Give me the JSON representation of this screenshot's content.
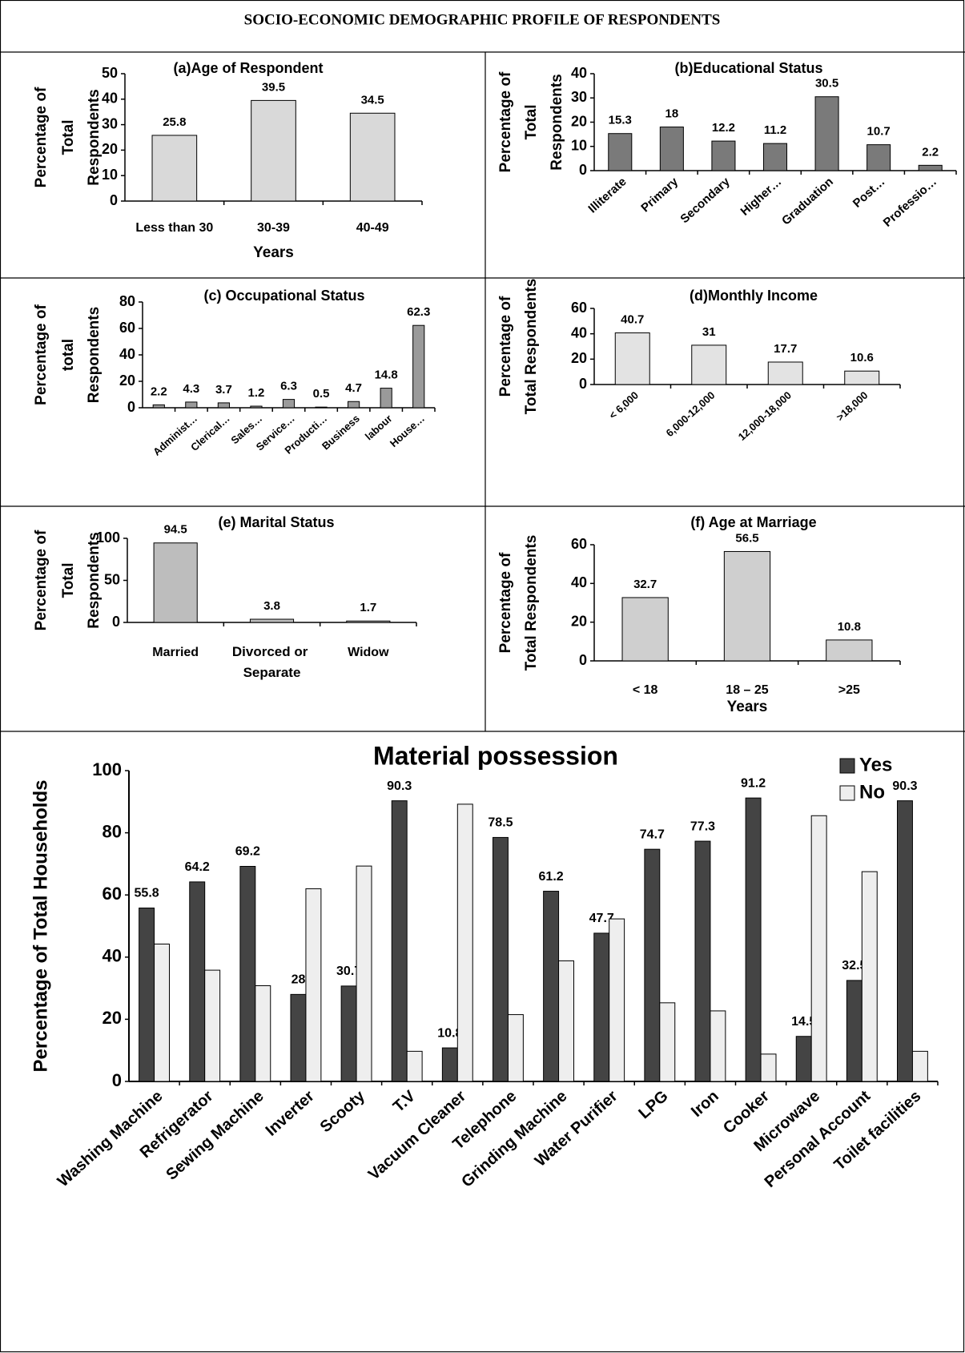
{
  "title": "SOCIO-ECONOMIC  DEMOGRAPHIC PROFILE OF RESPONDENTS",
  "chart_data": [
    {
      "type": "bar",
      "title": "(a)Age of Respondent",
      "ylabel": [
        "Percentage of",
        "Total",
        "Respondents"
      ],
      "xlabel": "Years",
      "categories": [
        "Less than 30",
        "30-39",
        "40-49"
      ],
      "values": [
        25.8,
        39.5,
        34.5
      ],
      "color": "#d9d9d9",
      "data_labels": true,
      "ylim": [
        0,
        50
      ],
      "yticks": [
        0,
        10,
        20,
        30,
        40,
        50
      ],
      "grid": false
    },
    {
      "type": "bar",
      "title": "(b)Educational Status",
      "ylabel": [
        "Percentage of",
        "Total",
        "Respondents"
      ],
      "categories": [
        "Illiterate",
        "Primary",
        "Secondary",
        "Higher…",
        "Graduation",
        "Post…",
        "Professio…"
      ],
      "values": [
        15.3,
        18,
        12.2,
        11.2,
        30.5,
        10.7,
        2.2
      ],
      "color": "#7a7a7a",
      "data_labels": true,
      "ylim": [
        0,
        40
      ],
      "yticks": [
        0,
        10,
        20,
        30,
        40
      ],
      "grid": false
    },
    {
      "type": "bar",
      "title": "(c) Occupational Status",
      "ylabel": [
        "Percentage of",
        "total",
        "Respondents"
      ],
      "categories": [
        null,
        "Administ…",
        "Clerical…",
        "Sales…",
        "Service…",
        "Producti…",
        "Business",
        "labour",
        "House…"
      ],
      "values": [
        2.2,
        4.3,
        3.7,
        1.2,
        6.3,
        0.5,
        4.7,
        14.8,
        62.3
      ],
      "color": "#9a9a9a",
      "data_labels": true,
      "ylim": [
        0,
        80
      ],
      "yticks": [
        0,
        20,
        40,
        60,
        80
      ],
      "grid": false
    },
    {
      "type": "bar",
      "title": "(d)Monthly Income",
      "ylabel": [
        "Percentage of",
        "Total Respondents"
      ],
      "categories": [
        "< 6,000",
        "6,000-12,000",
        "12,000-18,000",
        ">18,000"
      ],
      "values": [
        40.7,
        31,
        17.7,
        10.6
      ],
      "color": "#e3e3e3",
      "data_labels": true,
      "ylim": [
        0,
        60
      ],
      "yticks": [
        0,
        20,
        40,
        60
      ],
      "grid": false
    },
    {
      "type": "bar",
      "title": "(e) Marital Status",
      "ylabel": [
        "Percentage of",
        "Total",
        "Respondents"
      ],
      "categories": [
        "Married",
        "Divorced or Separate",
        "Widow"
      ],
      "values": [
        94.5,
        3.8,
        1.7
      ],
      "color": "#bdbdbd",
      "data_labels": true,
      "ylim": [
        0,
        100
      ],
      "yticks": [
        0,
        50,
        100
      ],
      "grid": false
    },
    {
      "type": "bar",
      "title": "(f) Age at Marriage",
      "ylabel": [
        "Percentage of",
        "Total Respondents"
      ],
      "xlabel": "Years",
      "categories": [
        "< 18",
        "18 – 25",
        ">25"
      ],
      "values": [
        32.7,
        56.5,
        10.8
      ],
      "color": "#cfcfcf",
      "data_labels": true,
      "ylim": [
        0,
        60
      ],
      "yticks": [
        0,
        20,
        40,
        60
      ],
      "grid": false
    },
    {
      "type": "grouped-bar",
      "title": "Material possession",
      "ylabel": [
        "Percentage of Total Households"
      ],
      "categories": [
        "Washing Machine",
        "Refrigerator",
        "Sewing Machine",
        "Inverter",
        "Scooty",
        "T.V",
        "Vacuum Cleaner",
        "Telephone",
        "Grinding Machine",
        "Water Purifier",
        "LPG",
        "Iron",
        "Cooker",
        "Microwave",
        "Personal Account",
        "Toilet facilities"
      ],
      "series": [
        {
          "name": "Yes",
          "color": "#444444",
          "data_labels": true,
          "values": [
            55.8,
            64.2,
            69.2,
            28,
            30.7,
            90.3,
            10.8,
            78.5,
            61.2,
            47.7,
            74.7,
            77.3,
            91.2,
            14.5,
            32.5,
            90.3
          ]
        },
        {
          "name": "No",
          "color": "#eeeeee",
          "data_labels": false,
          "values": [
            44.2,
            35.8,
            30.8,
            62,
            69.3,
            9.7,
            89.2,
            21.5,
            38.8,
            52.3,
            25.3,
            22.7,
            8.8,
            85.5,
            67.5,
            9.7
          ]
        }
      ],
      "legend": "upper right",
      "ylim": [
        0,
        100
      ],
      "yticks": [
        0,
        20,
        40,
        60,
        80,
        100
      ],
      "grid": false
    }
  ]
}
